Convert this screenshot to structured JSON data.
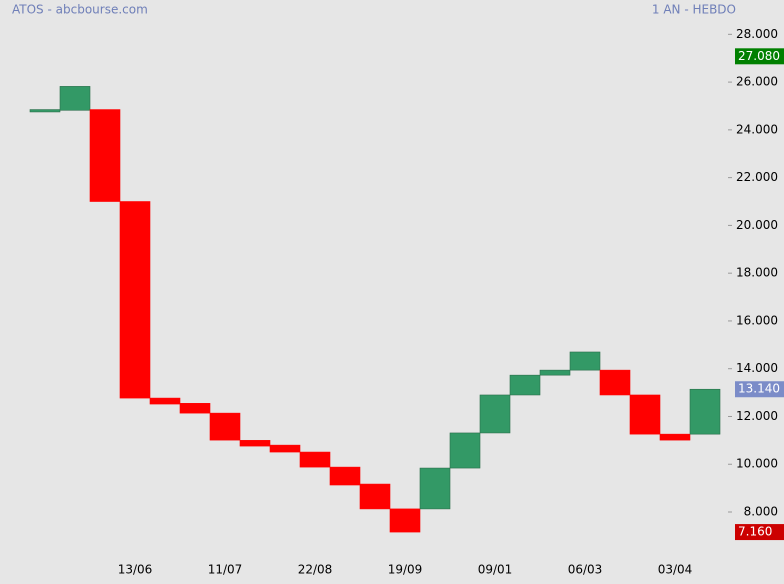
{
  "chart_data": {
    "type": "candlestick",
    "title": "ATOS - abcbourse.com",
    "subtitle": "1 AN - HEBDO",
    "categories": [
      null,
      null,
      null,
      "13/06",
      null,
      null,
      "11/07",
      null,
      null,
      "22/08",
      null,
      null,
      "19/09",
      null,
      null,
      "09/01",
      null,
      null,
      "06/03",
      null,
      null,
      "03/04",
      null
    ],
    "open": [
      24.75,
      24.82,
      24.85,
      21.0,
      12.77,
      12.55,
      12.14,
      11.0,
      10.8,
      10.51,
      9.88,
      9.17,
      8.13,
      8.13,
      9.84,
      11.31,
      12.9,
      13.73,
      13.94,
      13.94,
      12.9,
      11.26,
      11.26
    ],
    "close": [
      24.85,
      25.82,
      21.0,
      12.77,
      12.52,
      12.14,
      11.01,
      10.76,
      10.51,
      9.88,
      9.13,
      8.13,
      7.16,
      9.84,
      11.31,
      12.9,
      13.73,
      13.94,
      14.7,
      12.9,
      11.26,
      11.01,
      13.14
    ],
    "up_color": "#339966",
    "down_color": "#ff0000",
    "ylim": [
      6.2,
      28.6
    ],
    "yticks": [
      {
        "value": 8,
        "label": "8.000"
      },
      {
        "value": 10,
        "label": "10.000"
      },
      {
        "value": 12,
        "label": "12.000"
      },
      {
        "value": 14,
        "label": "14.000"
      },
      {
        "value": 16,
        "label": "16.000"
      },
      {
        "value": 18,
        "label": "18.000"
      },
      {
        "value": 20,
        "label": "20.000"
      },
      {
        "value": 22,
        "label": "22.000"
      },
      {
        "value": 24,
        "label": "24.000"
      },
      {
        "value": 26,
        "label": "26.000"
      },
      {
        "value": 28,
        "label": "28.000"
      }
    ],
    "value_markers": [
      {
        "value": 27.08,
        "label": "27.080",
        "color": "#008000"
      },
      {
        "value": 13.14,
        "label": "13.140",
        "color": "#7b8cc8"
      },
      {
        "value": 7.16,
        "label": "7.160",
        "color": "#cc0000"
      }
    ]
  }
}
